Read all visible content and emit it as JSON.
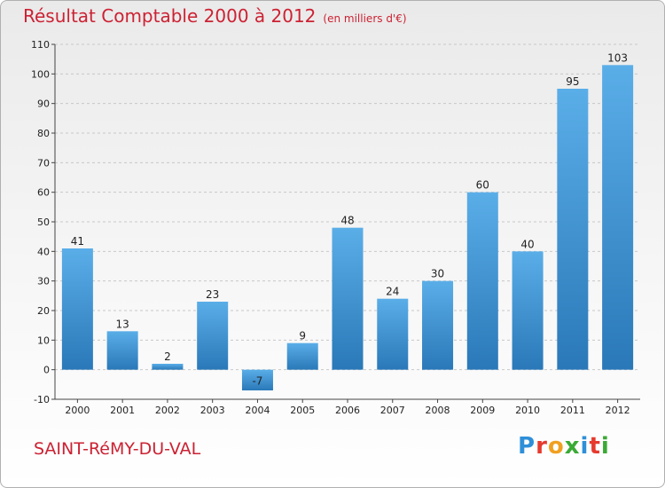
{
  "header": {
    "title": "Résultat Comptable 2000 à 2012",
    "unit": "(en milliers d'€)"
  },
  "footer": {
    "commune": "SAINT-RéMY-DU-VAL",
    "logo": [
      "P",
      "r",
      "o",
      "x",
      "i",
      "t",
      "i"
    ],
    "logo_colors": [
      "#2f8fd8",
      "#e63a2e",
      "#f0a020",
      "#3aaa35",
      "#2f8fd8",
      "#e63a2e",
      "#3aaa35"
    ]
  },
  "chart_data": {
    "type": "bar",
    "title": "Résultat Comptable 2000 à 2012",
    "subtitle": "(en milliers d'€)",
    "categories": [
      "2000",
      "2001",
      "2002",
      "2003",
      "2004",
      "2005",
      "2006",
      "2007",
      "2008",
      "2009",
      "2010",
      "2011",
      "2012"
    ],
    "values": [
      41,
      13,
      2,
      23,
      -7,
      9,
      48,
      24,
      30,
      60,
      40,
      95,
      103
    ],
    "ylim": [
      -10,
      110
    ],
    "yticks": [
      -10,
      0,
      10,
      20,
      30,
      40,
      50,
      60,
      70,
      80,
      90,
      100,
      110
    ],
    "grid": true,
    "bar_color_light": "#5aaee8",
    "bar_color_dark": "#2a78b8"
  }
}
